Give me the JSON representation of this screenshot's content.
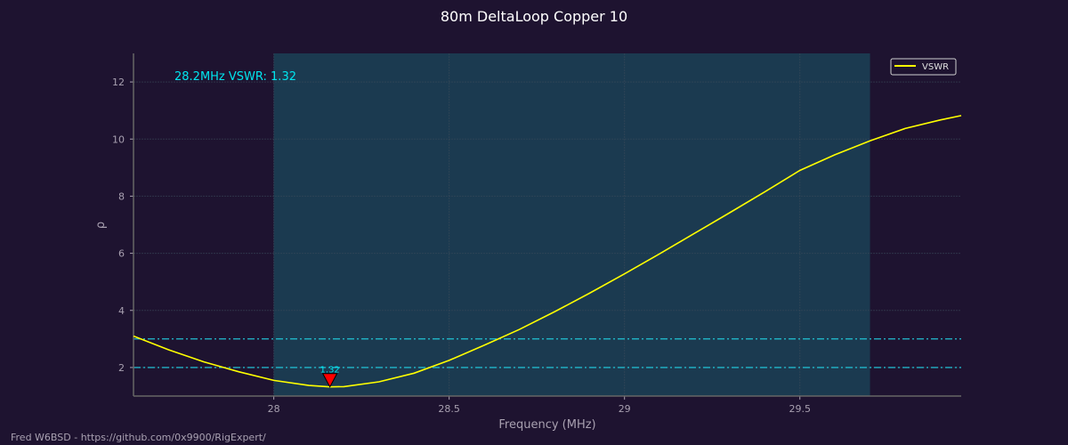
{
  "chart_data": {
    "type": "line",
    "title": "80m DeltaLoop Copper 10",
    "xlabel": "Frequency (MHz)",
    "ylabel": "ρ",
    "xlim": [
      27.6,
      29.96
    ],
    "ylim": [
      1.0,
      13.0
    ],
    "xticks": [
      28,
      28.5,
      29,
      29.5
    ],
    "xtick_labels": [
      "28",
      "28.5",
      "29",
      "29.5"
    ],
    "yticks": [
      2,
      4,
      6,
      8,
      10,
      12
    ],
    "ytick_labels": [
      "2",
      "4",
      "6",
      "8",
      "10",
      "12"
    ],
    "grid": true,
    "legend": {
      "entries": [
        "VSWR"
      ],
      "placement": "top-right"
    },
    "band": [
      28.0,
      29.7
    ],
    "hlines": [
      2,
      3
    ],
    "series": [
      {
        "name": "VSWR",
        "color": "#ffff00",
        "x": [
          27.6,
          27.7,
          27.8,
          27.9,
          28.0,
          28.1,
          28.16,
          28.2,
          28.3,
          28.4,
          28.5,
          28.6,
          28.7,
          28.8,
          28.9,
          29.0,
          29.1,
          29.2,
          29.3,
          29.4,
          29.5,
          29.6,
          29.7,
          29.8,
          29.9,
          29.96
        ],
        "y": [
          3.1,
          2.62,
          2.2,
          1.85,
          1.55,
          1.37,
          1.32,
          1.33,
          1.5,
          1.8,
          2.25,
          2.78,
          3.33,
          3.95,
          4.6,
          5.28,
          5.98,
          6.7,
          7.42,
          8.15,
          8.9,
          9.45,
          9.94,
          10.37,
          10.67,
          10.82
        ]
      }
    ],
    "marker": {
      "x": 28.16,
      "y": 1.32,
      "label": "1.32"
    },
    "annotation": "28.2MHz VSWR: 1.32"
  },
  "footer": "Fred W6BSD - https://github.com/0x9900/RigExpert/",
  "colors": {
    "band": "#1b3a50",
    "hline": "#22d3e6",
    "marker": "#ff0000",
    "annotation": "#00e5ee"
  }
}
